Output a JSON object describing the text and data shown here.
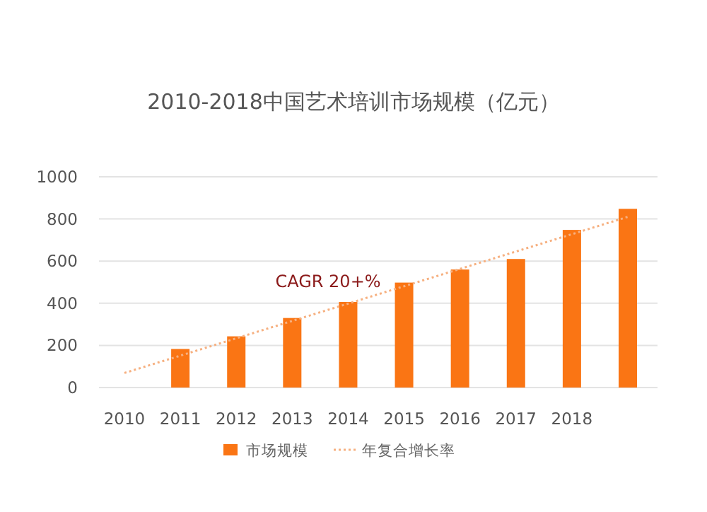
{
  "chart_data": {
    "type": "bar",
    "title": "2010-2018中国艺术培训市场规模（亿元）",
    "categories": [
      "2010",
      "2011",
      "2012",
      "2013",
      "2014",
      "2015",
      "2016",
      "2017",
      "2018",
      null
    ],
    "series": [
      {
        "name": "市场规模",
        "color": "#fa7514",
        "values": [
          null,
          183,
          243,
          330,
          406,
          498,
          560,
          610,
          748,
          848
        ]
      },
      {
        "name": "年复合增长率",
        "type": "line",
        "color": "#f6b080",
        "values": [
          69,
          null,
          null,
          null,
          null,
          null,
          null,
          null,
          null,
          810
        ]
      }
    ],
    "ylim": [
      0,
      1000
    ],
    "yticks": [
      0,
      200,
      400,
      600,
      800,
      1000
    ],
    "grid": "y",
    "legend": "bottom",
    "line_style": "dotted",
    "annotations": [
      "CAGR 20+%"
    ]
  }
}
